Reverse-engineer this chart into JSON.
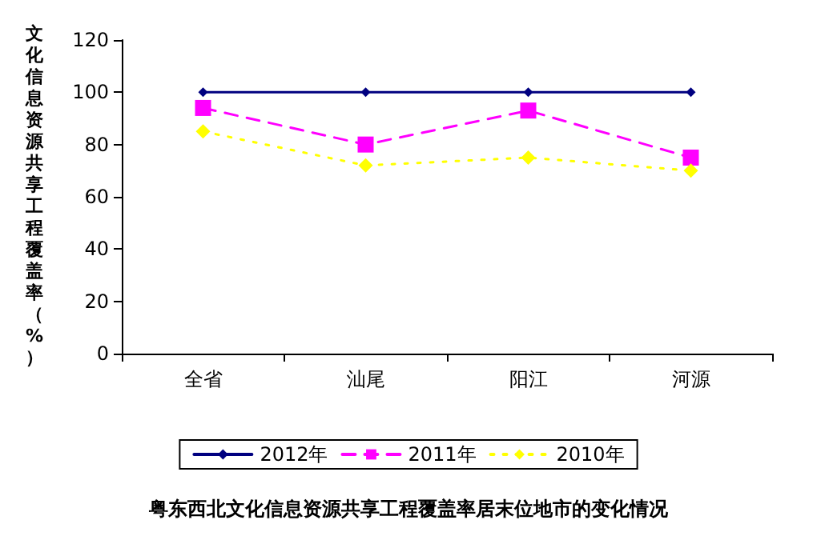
{
  "chart_data": {
    "type": "line",
    "title": "粤东西北文化信息资源共享工程覆盖率居末位地市的变化情况",
    "ylabel": "文化信息资源共享工程覆盖率（%）",
    "categories": [
      "全省",
      "汕尾",
      "阳江",
      "河源"
    ],
    "series": [
      {
        "name": "2012年",
        "color": "#000080",
        "values": [
          100,
          100,
          100,
          100
        ],
        "marker": "diamond",
        "line_style": "solid"
      },
      {
        "name": "2011年",
        "color": "#ff00ff",
        "values": [
          94,
          80,
          93,
          75
        ],
        "marker": "square",
        "line_style": "dashed"
      },
      {
        "name": "2010年",
        "color": "#ffff00",
        "values": [
          85,
          72,
          75,
          70
        ],
        "marker": "diamond",
        "line_style": "dotted"
      }
    ],
    "ylim": [
      0,
      120
    ],
    "yticks": [
      0,
      20,
      40,
      60,
      80,
      100,
      120
    ],
    "grid": false,
    "legend": "bottom"
  }
}
